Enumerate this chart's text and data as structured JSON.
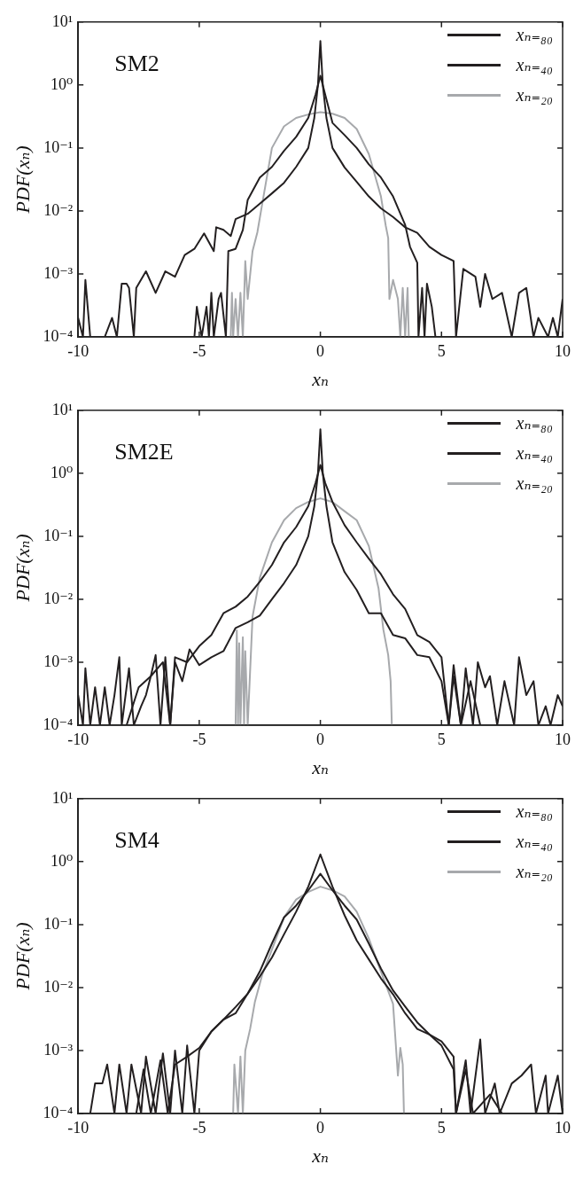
{
  "chart_data": [
    {
      "type": "line",
      "annotations": [
        "SM2"
      ],
      "xlabel": "xₙ",
      "ylabel": "PDF(xₙ)",
      "xlim": [
        -10,
        10
      ],
      "xticks": [
        -10,
        -5,
        0,
        5,
        10
      ],
      "ylim": [
        0.0001,
        10
      ],
      "yticks": [
        {
          "value": 0.0001,
          "label": "10⁻⁴"
        },
        {
          "value": 0.001,
          "label": "10⁻³"
        },
        {
          "value": 0.01,
          "label": "10⁻²"
        },
        {
          "value": 0.1,
          "label": "10⁻¹"
        },
        {
          "value": 1,
          "label": "10⁰"
        },
        {
          "value": 10,
          "label": "10¹"
        }
      ],
      "log": "y",
      "legend": "top right",
      "marker": "none",
      "series": [
        {
          "name": "xₙ₌₈₀",
          "color": "#231f20",
          "x": [
            -10,
            -9.8,
            -9.7,
            -9.5,
            -8.9,
            -8.6,
            -8.4,
            -8.2,
            -8.0,
            -7.9,
            -7.7,
            -7.6,
            -7.2,
            -6.8,
            -6.4,
            -6.0,
            -5.6,
            -5.2,
            -4.8,
            -4.4,
            -4.3,
            -4.0,
            -3.7,
            -3.5,
            -3.0,
            -2.5,
            -2.0,
            -1.5,
            -1.0,
            -0.5,
            -0.25,
            -0.1,
            0,
            0.1,
            0.25,
            0.5,
            1.0,
            1.5,
            2.0,
            2.5,
            3.0,
            3.5,
            4.0,
            4.5,
            5.0,
            5.5,
            5.6,
            5.9,
            6.4,
            6.6,
            6.8,
            7.1,
            7.5,
            7.9,
            8.2,
            8.5,
            8.8,
            9.0,
            9.4,
            9.6,
            9.8,
            10
          ],
          "values": [
            0.0002,
            0.0001,
            0.0008,
            0.0001,
            0.0001,
            0.0002,
            0.0001,
            0.0007,
            0.0007,
            0.0006,
            0.0001,
            0.0006,
            0.0011,
            0.0005,
            0.0011,
            0.0009,
            0.002,
            0.0025,
            0.0044,
            0.0023,
            0.0055,
            0.005,
            0.004,
            0.0074,
            0.009,
            0.013,
            0.019,
            0.028,
            0.05,
            0.1,
            0.3,
            1,
            5,
            1,
            0.3,
            0.1,
            0.049,
            0.029,
            0.017,
            0.011,
            0.008,
            0.0055,
            0.0045,
            0.0027,
            0.002,
            0.0016,
            0.0001,
            0.0012,
            0.0009,
            0.0003,
            0.001,
            0.0004,
            0.0005,
            0.0001,
            0.0005,
            0.0006,
            0.0001,
            0.0002,
            0.0001,
            0.0002,
            0.0001,
            0.0004
          ]
        },
        {
          "name": "xₙ₌₄₀",
          "color": "#231f20",
          "x": [
            -5.2,
            -5.1,
            -4.9,
            -4.7,
            -4.6,
            -4.5,
            -4.4,
            -4.2,
            -4.1,
            -3.9,
            -3.8,
            -3.5,
            -3.2,
            -3.0,
            -2.5,
            -2.0,
            -1.5,
            -1.0,
            -0.5,
            -0.2,
            0,
            0.2,
            0.5,
            1.0,
            1.5,
            2.0,
            2.5,
            3.0,
            3.5,
            3.7,
            4.0,
            4.05,
            4.2,
            4.3,
            4.4,
            4.6,
            4.75
          ],
          "values": [
            0.0001,
            0.0003,
            0.0001,
            0.0003,
            0.0001,
            0.0005,
            0.0001,
            0.0004,
            0.0005,
            0.0001,
            0.0023,
            0.0025,
            0.005,
            0.015,
            0.034,
            0.05,
            0.09,
            0.15,
            0.3,
            0.7,
            1.4,
            0.7,
            0.25,
            0.16,
            0.1,
            0.055,
            0.034,
            0.017,
            0.006,
            0.0027,
            0.0015,
            0.0001,
            0.0006,
            0.0001,
            0.0007,
            0.0003,
            0.0001
          ]
        },
        {
          "name": "xₙ₌₂₀",
          "color": "#a7a9ac",
          "x": [
            -3.7,
            -3.65,
            -3.6,
            -3.5,
            -3.4,
            -3.3,
            -3.2,
            -3.1,
            -3.0,
            -2.8,
            -2.6,
            -2.4,
            -2.0,
            -1.5,
            -1.0,
            -0.5,
            0,
            0.5,
            1.0,
            1.5,
            2.0,
            2.5,
            2.7,
            2.8,
            2.85,
            3.0,
            3.2,
            3.3,
            3.4,
            3.5,
            3.6,
            3.65
          ],
          "values": [
            0.0001,
            0.0005,
            0.0001,
            0.0004,
            0.0001,
            0.0005,
            0.0001,
            0.0016,
            0.0004,
            0.0023,
            0.0046,
            0.013,
            0.1,
            0.22,
            0.3,
            0.34,
            0.37,
            0.35,
            0.3,
            0.2,
            0.08,
            0.017,
            0.0058,
            0.0037,
            0.0004,
            0.0008,
            0.0004,
            0.0001,
            0.0006,
            0.0001,
            0.0006,
            0.0001
          ]
        }
      ]
    },
    {
      "type": "line",
      "annotations": [
        "SM2E"
      ],
      "xlabel": "xₙ",
      "ylabel": "PDF(xₙ)",
      "xlim": [
        -10,
        10
      ],
      "xticks": [
        -10,
        -5,
        0,
        5,
        10
      ],
      "ylim": [
        0.0001,
        10
      ],
      "yticks": [
        {
          "value": 0.0001,
          "label": "10⁻⁴"
        },
        {
          "value": 0.001,
          "label": "10⁻³"
        },
        {
          "value": 0.01,
          "label": "10⁻²"
        },
        {
          "value": 0.1,
          "label": "10⁻¹"
        },
        {
          "value": 1,
          "label": "10⁰"
        },
        {
          "value": 10,
          "label": "10¹"
        }
      ],
      "log": "y",
      "legend": "top right",
      "marker": "none",
      "series": [
        {
          "name": "xₙ₌₈₀",
          "color": "#231f20",
          "x": [
            -10,
            -9.8,
            -9.7,
            -9.5,
            -9.3,
            -9.1,
            -8.9,
            -8.7,
            -8.5,
            -8.3,
            -8.2,
            -7.9,
            -7.7,
            -7.4,
            -7.2,
            -7.0,
            -6.8,
            -6.6,
            -6.4,
            -6.2,
            -6.0,
            -5.7,
            -5.4,
            -5.0,
            -4.5,
            -4.0,
            -3.5,
            -3.0,
            -2.5,
            -2.0,
            -1.5,
            -1.0,
            -0.5,
            -0.25,
            -0.1,
            0,
            0.1,
            0.25,
            0.5,
            1.0,
            1.5,
            2.0,
            2.5,
            3.0,
            3.5,
            4.0,
            4.5,
            5.0,
            5.3,
            5.5,
            5.8,
            6.0,
            6.3,
            6.5,
            6.8,
            7.0,
            7.3,
            7.6,
            8.0,
            8.2,
            8.5,
            8.8,
            9.0,
            9.3,
            9.5,
            9.8,
            10
          ],
          "values": [
            0.0003,
            0.0001,
            0.0008,
            0.0001,
            0.0004,
            0.0001,
            0.0004,
            0.0001,
            0.0003,
            0.0012,
            0.0001,
            0.0008,
            0.0001,
            0.0002,
            0.0003,
            0.0006,
            0.0013,
            0.0001,
            0.0012,
            0.0001,
            0.001,
            0.0005,
            0.0016,
            0.0009,
            0.0012,
            0.0015,
            0.0035,
            0.0043,
            0.0055,
            0.01,
            0.018,
            0.035,
            0.1,
            0.3,
            1,
            5,
            1,
            0.3,
            0.08,
            0.027,
            0.014,
            0.006,
            0.006,
            0.0027,
            0.0024,
            0.0013,
            0.0012,
            0.0005,
            0.0001,
            0.0009,
            0.0001,
            0.0008,
            0.0001,
            0.001,
            0.0004,
            0.0006,
            0.0001,
            0.0005,
            0.0001,
            0.0012,
            0.0003,
            0.0005,
            0.0001,
            0.0002,
            0.0001,
            0.0003,
            0.0002
          ]
        },
        {
          "name": "xₙ₌₄₀",
          "color": "#231f20",
          "x": [
            -8,
            -7.5,
            -7,
            -6.5,
            -6.2,
            -6,
            -5.5,
            -5,
            -4.5,
            -4,
            -3.5,
            -3,
            -2.5,
            -2,
            -1.5,
            -1,
            -0.5,
            -0.2,
            0,
            0.2,
            0.5,
            1,
            1.5,
            2,
            2.5,
            3,
            3.5,
            4,
            4.5,
            5,
            5.3,
            5.5,
            5.8,
            6.2,
            6.6,
            7
          ],
          "values": [
            0.0001,
            0.0004,
            0.0006,
            0.001,
            0.0001,
            0.0012,
            0.001,
            0.0018,
            0.0027,
            0.006,
            0.0076,
            0.011,
            0.019,
            0.035,
            0.08,
            0.14,
            0.3,
            0.7,
            1.35,
            0.7,
            0.35,
            0.15,
            0.08,
            0.044,
            0.025,
            0.012,
            0.007,
            0.0027,
            0.0021,
            0.0012,
            0.0001,
            0.0006,
            0.0001,
            0.0005,
            0.0001,
            0.0001
          ]
        },
        {
          "name": "xₙ₌₂₀",
          "color": "#a7a9ac",
          "x": [
            -3.5,
            -3.45,
            -3.4,
            -3.35,
            -3.3,
            -3.2,
            -3.15,
            -3.1,
            -3.0,
            -2.8,
            -2.5,
            -2.0,
            -1.5,
            -1.0,
            -0.5,
            0,
            0.5,
            1.0,
            1.5,
            2.0,
            2.4,
            2.6,
            2.8,
            2.9,
            2.95
          ],
          "values": [
            0.0001,
            0.0032,
            0.0001,
            0.002,
            0.0001,
            0.0025,
            0.0001,
            0.0015,
            0.0001,
            0.0053,
            0.022,
            0.08,
            0.18,
            0.28,
            0.35,
            0.4,
            0.35,
            0.25,
            0.18,
            0.07,
            0.015,
            0.0033,
            0.0013,
            0.0005,
            0.0001
          ]
        }
      ]
    },
    {
      "type": "line",
      "annotations": [
        "SM4"
      ],
      "xlabel": "xₙ",
      "ylabel": "PDF(xₙ)",
      "xlim": [
        -10,
        10
      ],
      "xticks": [
        -10,
        -5,
        0,
        5,
        10
      ],
      "ylim": [
        0.0001,
        10
      ],
      "yticks": [
        {
          "value": 0.0001,
          "label": "10⁻⁴"
        },
        {
          "value": 0.001,
          "label": "10⁻³"
        },
        {
          "value": 0.01,
          "label": "10⁻²"
        },
        {
          "value": 0.1,
          "label": "10⁻¹"
        },
        {
          "value": 1,
          "label": "10⁰"
        },
        {
          "value": 10,
          "label": "10¹"
        }
      ],
      "log": "y",
      "legend": "top right",
      "marker": "none",
      "series": [
        {
          "name": "xₙ₌₈₀",
          "color": "#231f20",
          "x": [
            -9.5,
            -9.3,
            -9.0,
            -8.8,
            -8.5,
            -8.3,
            -8.0,
            -7.8,
            -7.4,
            -7.2,
            -6.8,
            -6.5,
            -6.2,
            -6.0,
            -5.7,
            -5.5,
            -5.2,
            -5.0,
            -4.5,
            -4.0,
            -3.5,
            -3.0,
            -2.5,
            -2.0,
            -1.5,
            -1.0,
            -0.5,
            0,
            0.5,
            1.0,
            1.5,
            2.0,
            2.5,
            3.0,
            3.5,
            4.0,
            4.5,
            5.0,
            5.5,
            5.6,
            6.0,
            6.2,
            6.6,
            6.8,
            7.2,
            7.4,
            7.9,
            8.3,
            8.7,
            8.9,
            9.3,
            9.4,
            9.8,
            10
          ],
          "values": [
            0.0001,
            0.0003,
            0.0003,
            0.0006,
            0.0001,
            0.0006,
            0.0001,
            0.0006,
            0.0001,
            0.0008,
            0.0001,
            0.0009,
            0.0001,
            0.001,
            0.0001,
            0.0012,
            0.0001,
            0.001,
            0.002,
            0.0031,
            0.0039,
            0.008,
            0.015,
            0.03,
            0.07,
            0.16,
            0.4,
            1.3,
            0.4,
            0.14,
            0.056,
            0.028,
            0.014,
            0.0078,
            0.0039,
            0.0022,
            0.0018,
            0.0014,
            0.0008,
            0.0001,
            0.0007,
            0.0001,
            0.0015,
            0.0001,
            0.0003,
            0.0001,
            0.0003,
            0.0004,
            0.0006,
            0.0001,
            0.0004,
            0.0001,
            0.0004,
            0.0001
          ]
        },
        {
          "name": "xₙ₌₄₀",
          "color": "#231f20",
          "x": [
            -8,
            -7.6,
            -7.3,
            -7,
            -6.6,
            -6.3,
            -6,
            -5.5,
            -5,
            -4.5,
            -4,
            -3.5,
            -3,
            -2.5,
            -2,
            -1.5,
            -1,
            -0.5,
            0,
            0.5,
            1,
            1.5,
            2,
            2.5,
            3,
            3.5,
            4,
            4.5,
            5,
            5.5,
            5.6,
            6,
            6.3,
            7,
            7.5
          ],
          "values": [
            0.0001,
            0.0001,
            0.0005,
            0.0001,
            0.0007,
            0.0001,
            0.0006,
            0.0008,
            0.0011,
            0.002,
            0.0031,
            0.0049,
            0.008,
            0.018,
            0.05,
            0.13,
            0.2,
            0.35,
            0.64,
            0.35,
            0.2,
            0.12,
            0.05,
            0.02,
            0.009,
            0.005,
            0.0028,
            0.0018,
            0.0012,
            0.0005,
            0.0001,
            0.0005,
            0.0001,
            0.0002,
            0.0001
          ]
        },
        {
          "name": "xₙ₌₂₀",
          "color": "#a7a9ac",
          "x": [
            -3.6,
            -3.55,
            -3.4,
            -3.3,
            -3.2,
            -3.1,
            -2.9,
            -2.7,
            -2.4,
            -2,
            -1.5,
            -1,
            -0.5,
            0,
            0.5,
            1,
            1.5,
            2,
            2.5,
            3,
            3.1,
            3.2,
            3.3,
            3.4,
            3.45
          ],
          "values": [
            0.0001,
            0.0006,
            0.0001,
            0.0008,
            0.0001,
            0.001,
            0.0022,
            0.006,
            0.016,
            0.04,
            0.13,
            0.25,
            0.33,
            0.4,
            0.35,
            0.28,
            0.16,
            0.06,
            0.018,
            0.0055,
            0.0015,
            0.0004,
            0.0011,
            0.0006,
            0.0001
          ]
        }
      ]
    }
  ]
}
